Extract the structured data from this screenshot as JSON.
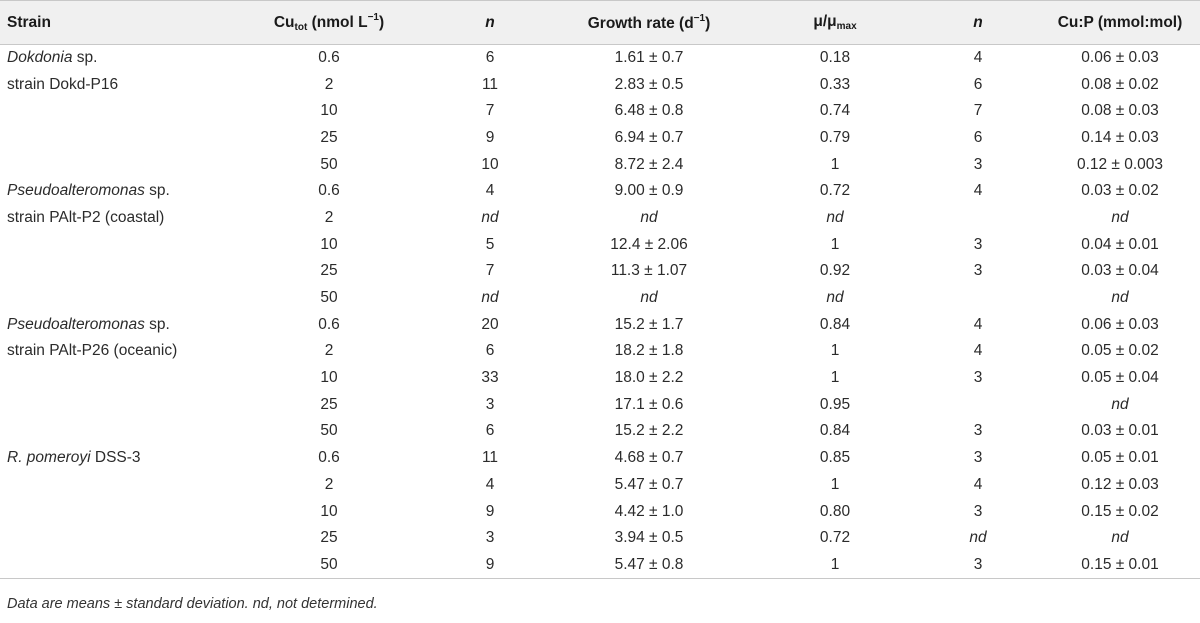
{
  "header": {
    "strain": "Strain",
    "cu_base": "Cu",
    "cu_sub": "tot",
    "cu_unit_pre": " (nmol L",
    "cu_unit_sup": "−1",
    "cu_unit_post": ")",
    "n1": "n",
    "growth_pre": "Growth rate (d",
    "growth_sup": "−1",
    "growth_post": ")",
    "mu_base": "μ/μ",
    "mu_sub": "max",
    "n2": "n",
    "cup": "Cu:P (mmol:mol)"
  },
  "rows": [
    {
      "strain": "Dokdonia",
      "strain_rest": " sp.",
      "cu": "0.6",
      "n1": "6",
      "growth": "1.61 ± 0.7",
      "mu": "0.18",
      "n2": "4",
      "cup": "0.06 ± 0.03"
    },
    {
      "strain": "",
      "strain_rest": "strain Dokd-P16",
      "cu": "2",
      "n1": "11",
      "growth": "2.83 ± 0.5",
      "mu": "0.33",
      "n2": "6",
      "cup": "0.08 ± 0.02"
    },
    {
      "strain": "",
      "strain_rest": "",
      "cu": "10",
      "n1": "7",
      "growth": "6.48 ± 0.8",
      "mu": "0.74",
      "n2": "7",
      "cup": "0.08 ± 0.03"
    },
    {
      "strain": "",
      "strain_rest": "",
      "cu": "25",
      "n1": "9",
      "growth": "6.94 ± 0.7",
      "mu": "0.79",
      "n2": "6",
      "cup": "0.14 ± 0.03"
    },
    {
      "strain": "",
      "strain_rest": "",
      "cu": "50",
      "n1": "10",
      "growth": "8.72 ± 2.4",
      "mu": "1",
      "n2": "3",
      "cup": "0.12 ± 0.003"
    },
    {
      "strain": "Pseudoalteromonas",
      "strain_rest": " sp.",
      "cu": "0.6",
      "n1": "4",
      "growth": "9.00 ± 0.9",
      "mu": "0.72",
      "n2": "4",
      "cup": "0.03 ± 0.02"
    },
    {
      "strain": "",
      "strain_rest": "strain PAlt-P2 (coastal)",
      "cu": "2",
      "n1": "nd",
      "growth": "nd",
      "mu": "nd",
      "n2": "",
      "cup": "nd"
    },
    {
      "strain": "",
      "strain_rest": "",
      "cu": "10",
      "n1": "5",
      "growth": "12.4 ± 2.06",
      "mu": "1",
      "n2": "3",
      "cup": "0.04 ± 0.01"
    },
    {
      "strain": "",
      "strain_rest": "",
      "cu": "25",
      "n1": "7",
      "growth": "11.3 ± 1.07",
      "mu": "0.92",
      "n2": "3",
      "cup": "0.03 ± 0.04"
    },
    {
      "strain": "",
      "strain_rest": "",
      "cu": "50",
      "n1": "nd",
      "growth": "nd",
      "mu": "nd",
      "n2": "",
      "cup": "nd"
    },
    {
      "strain": "Pseudoalteromonas",
      "strain_rest": " sp.",
      "cu": "0.6",
      "n1": "20",
      "growth": "15.2 ± 1.7",
      "mu": "0.84",
      "n2": "4",
      "cup": "0.06 ± 0.03"
    },
    {
      "strain": "",
      "strain_rest": "strain PAlt-P26 (oceanic)",
      "cu": "2",
      "n1": "6",
      "growth": "18.2 ± 1.8",
      "mu": "1",
      "n2": "4",
      "cup": "0.05 ± 0.02"
    },
    {
      "strain": "",
      "strain_rest": "",
      "cu": "10",
      "n1": "33",
      "growth": "18.0 ± 2.2",
      "mu": "1",
      "n2": "3",
      "cup": "0.05 ± 0.04"
    },
    {
      "strain": "",
      "strain_rest": "",
      "cu": "25",
      "n1": "3",
      "growth": "17.1 ± 0.6",
      "mu": "0.95",
      "n2": "",
      "cup": "nd"
    },
    {
      "strain": "",
      "strain_rest": "",
      "cu": "50",
      "n1": "6",
      "growth": "15.2 ± 2.2",
      "mu": "0.84",
      "n2": "3",
      "cup": "0.03 ± 0.01"
    },
    {
      "strain": "R. pomeroyi",
      "strain_rest": " DSS-3",
      "cu": "0.6",
      "n1": "11",
      "growth": "4.68 ± 0.7",
      "mu": "0.85",
      "n2": "3",
      "cup": "0.05 ± 0.01"
    },
    {
      "strain": "",
      "strain_rest": "",
      "cu": "2",
      "n1": "4",
      "growth": "5.47 ± 0.7",
      "mu": "1",
      "n2": "4",
      "cup": "0.12 ± 0.03"
    },
    {
      "strain": "",
      "strain_rest": "",
      "cu": "10",
      "n1": "9",
      "growth": "4.42 ± 1.0",
      "mu": "0.80",
      "n2": "3",
      "cup": "0.15 ± 0.02"
    },
    {
      "strain": "",
      "strain_rest": "",
      "cu": "25",
      "n1": "3",
      "growth": "3.94 ± 0.5",
      "mu": "0.72",
      "n2": "nd",
      "cup": "nd"
    },
    {
      "strain": "",
      "strain_rest": "",
      "cu": "50",
      "n1": "9",
      "growth": "5.47 ± 0.8",
      "mu": "1",
      "n2": "3",
      "cup": "0.15 ± 0.01"
    }
  ],
  "footnote": "Data are means ± standard deviation. nd, not determined."
}
